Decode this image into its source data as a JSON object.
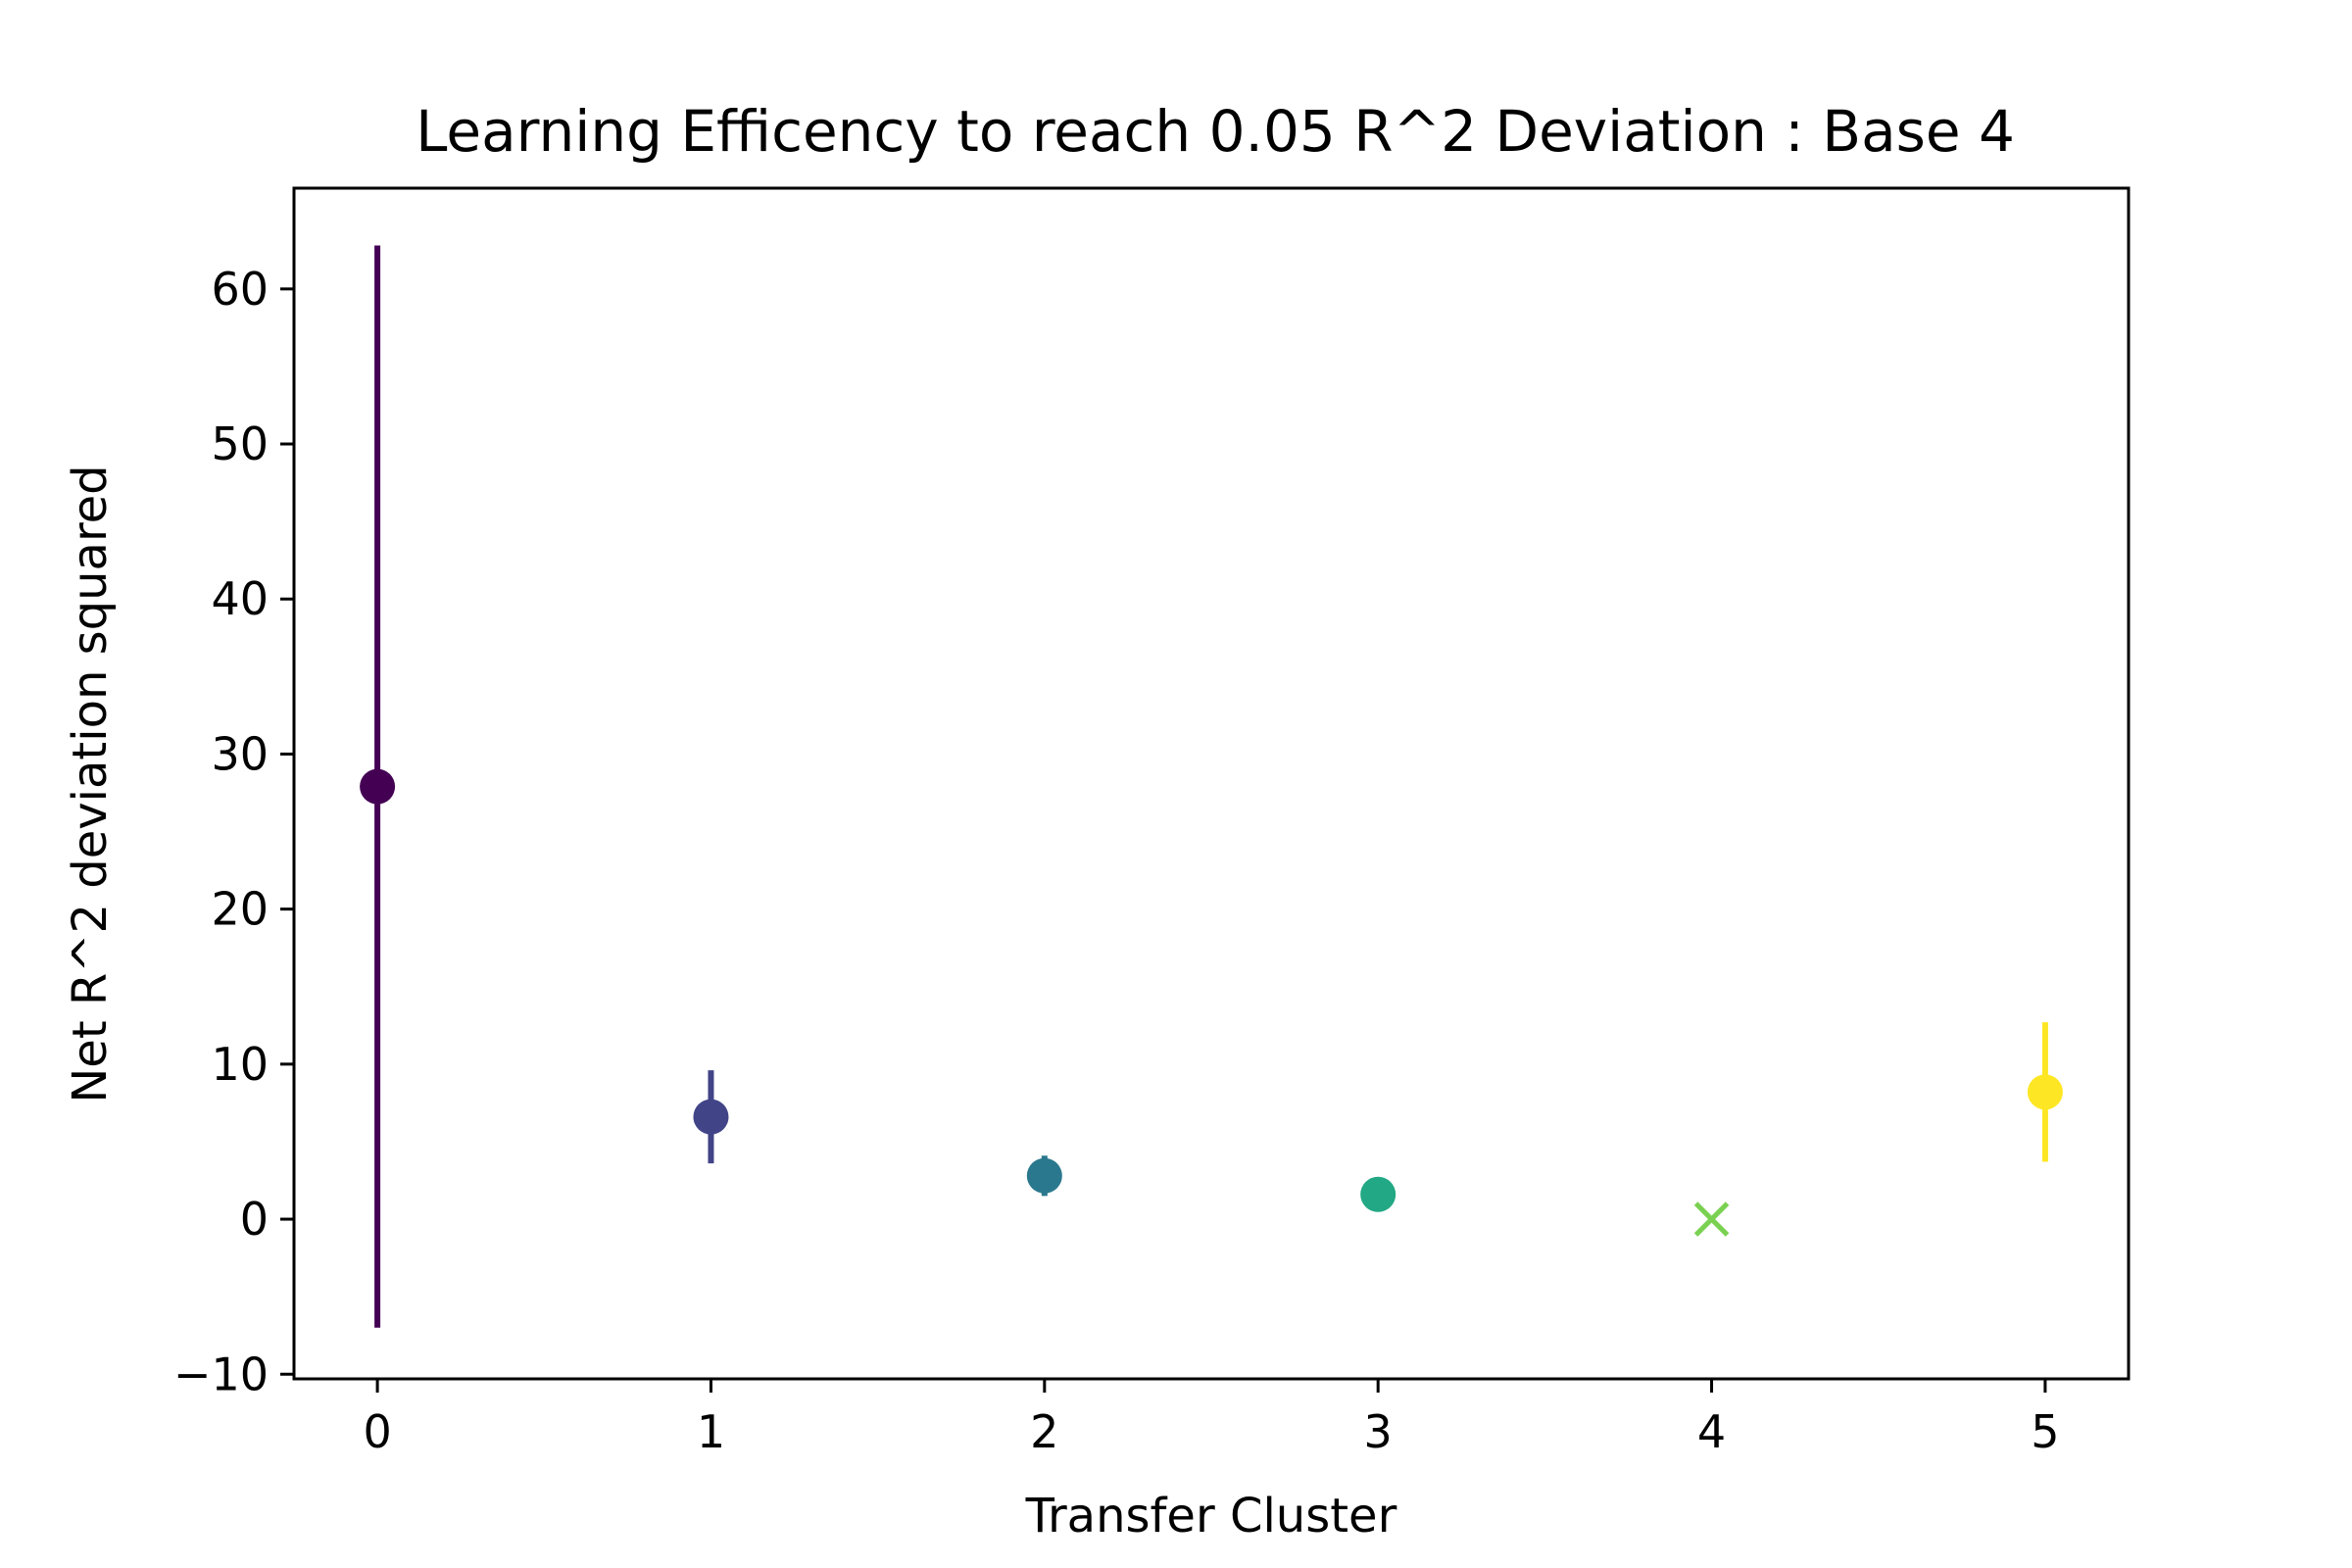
{
  "chart_data": {
    "type": "scatter",
    "title": "Learning Efficency to reach 0.05 R^2 Deviation : Base 4",
    "xlabel": "Transfer Cluster",
    "ylabel": "Net R^2 deviation squared",
    "xlim": [
      -0.25,
      5.25
    ],
    "ylim": [
      -10.3,
      66.5
    ],
    "xticks": [
      0,
      1,
      2,
      3,
      4,
      5
    ],
    "xtick_labels": [
      "0",
      "1",
      "2",
      "3",
      "4",
      "5"
    ],
    "yticks": [
      -10,
      0,
      10,
      20,
      30,
      40,
      50,
      60
    ],
    "ytick_labels": [
      "−10",
      "0",
      "10",
      "20",
      "30",
      "40",
      "50",
      "60"
    ],
    "grid": false,
    "series": [
      {
        "x": 0,
        "y": 27.9,
        "yerr": 34.9,
        "marker": "circle",
        "color": "#440154"
      },
      {
        "x": 1,
        "y": 6.6,
        "yerr": 3.0,
        "marker": "circle",
        "color": "#414487"
      },
      {
        "x": 2,
        "y": 2.8,
        "yerr": 1.3,
        "marker": "circle",
        "color": "#2a788e"
      },
      {
        "x": 3,
        "y": 1.6,
        "yerr": 0,
        "marker": "circle",
        "color": "#22a884"
      },
      {
        "x": 4,
        "y": 0.0,
        "yerr": 0,
        "marker": "x",
        "color": "#7ad151"
      },
      {
        "x": 5,
        "y": 8.2,
        "yerr": 4.5,
        "marker": "circle",
        "color": "#fde725"
      }
    ]
  }
}
